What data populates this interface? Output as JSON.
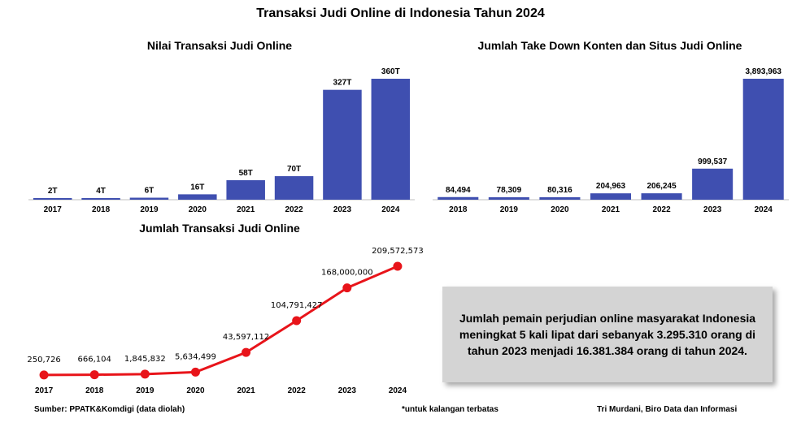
{
  "title": "Transaksi Judi Online di Indonesia Tahun 2024",
  "chart_data": [
    {
      "type": "bar",
      "title": "Nilai Transaksi Judi Online",
      "categories": [
        "2017",
        "2018",
        "2019",
        "2020",
        "2021",
        "2022",
        "2023",
        "2024"
      ],
      "values": [
        2,
        4,
        6,
        16,
        58,
        70,
        327,
        360
      ],
      "labels": [
        "2T",
        "4T",
        "6T",
        "16T",
        "58T",
        "70T",
        "327T",
        "360T"
      ],
      "ylim": [
        0,
        360
      ],
      "color": "#3f4fb0",
      "grid": false
    },
    {
      "type": "bar",
      "title": "Jumlah Take Down Konten dan Situs Judi Online",
      "categories": [
        "2018",
        "2019",
        "2020",
        "2021",
        "2022",
        "2023",
        "2024"
      ],
      "values": [
        84494,
        78309,
        80316,
        204963,
        206245,
        999537,
        3893963
      ],
      "labels": [
        "84,494",
        "78,309",
        "80,316",
        "204,963",
        "206,245",
        "999,537",
        "3,893,963"
      ],
      "ylim": [
        0,
        3893963
      ],
      "color": "#3f4fb0",
      "grid": false
    },
    {
      "type": "line",
      "title": "Jumlah Transaksi Judi Online",
      "categories": [
        "2017",
        "2018",
        "2019",
        "2020",
        "2021",
        "2022",
        "2023",
        "2024"
      ],
      "values": [
        250726,
        666104,
        1845832,
        5634499,
        43597112,
        104791427,
        168000000,
        209572573
      ],
      "labels": [
        "250,726",
        "666,104",
        "1,845,832",
        "5,634,499",
        "43,597,112",
        "104,791,427",
        "168,000,000",
        "209,572,573"
      ],
      "ylim": [
        0,
        209572573
      ],
      "color": "#e8141a",
      "grid": false
    }
  ],
  "note": "Jumlah pemain perjudian online masyarakat Indonesia meningkat 5 kali lipat dari sebanyak 3.295.310 orang di tahun 2023 menjadi 16.381.384 orang di tahun 2024.",
  "footer": {
    "source": "Sumber: PPATK&Komdigi (data diolah)",
    "remark": "*untuk kalangan terbatas",
    "author": "Tri Murdani, Biro Data dan Informasi"
  }
}
